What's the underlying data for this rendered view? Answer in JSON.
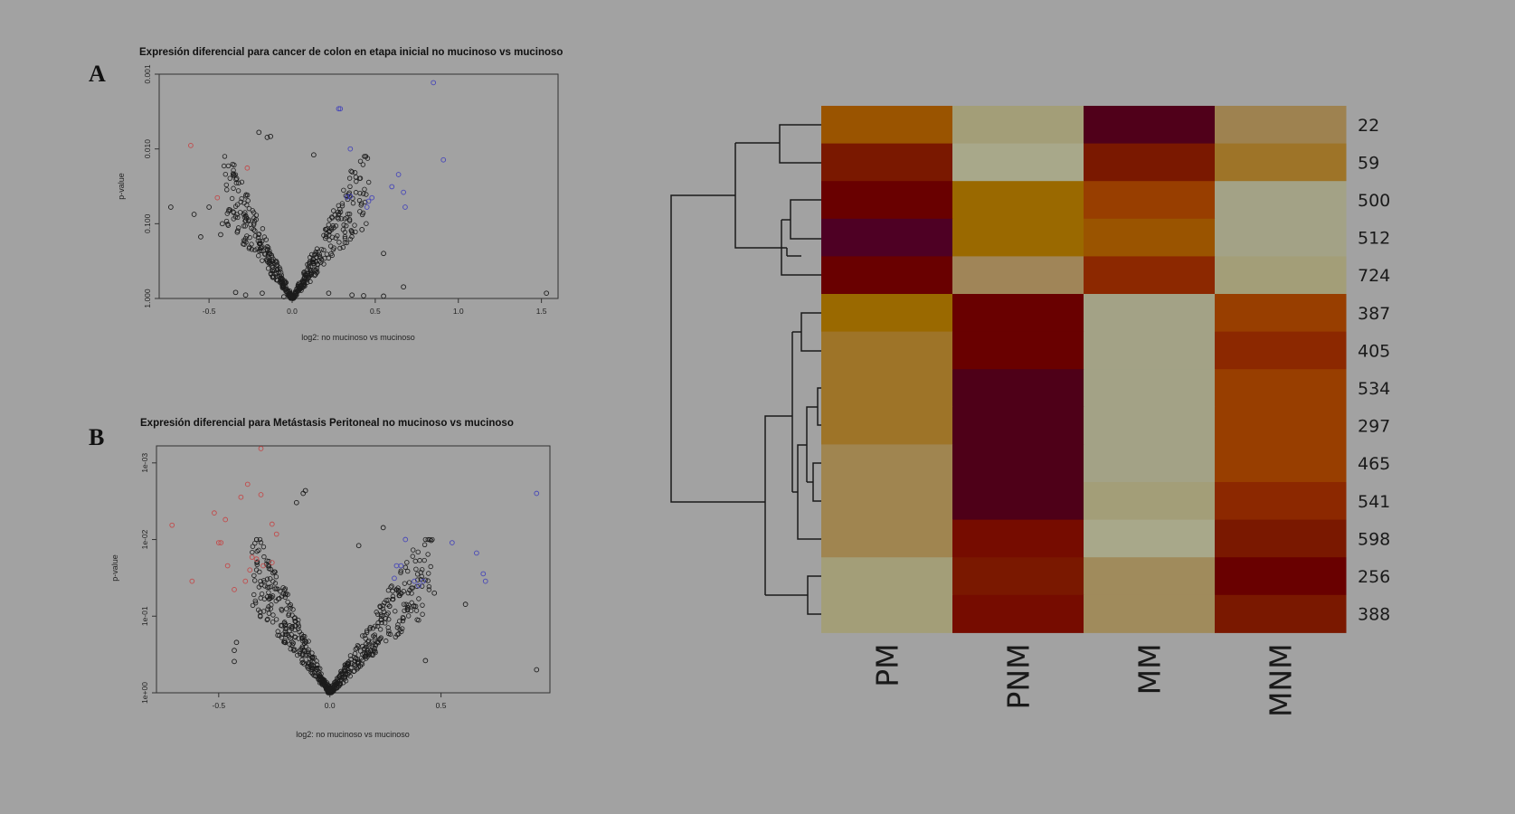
{
  "panels": [
    "A",
    "B"
  ],
  "chart_data": [
    {
      "type": "scatter",
      "panel": "A",
      "title": "Expresión diferencial para cancer de colon en etapa inicial no mucinoso vs mucinoso",
      "xlabel": "log2: no mucinoso vs mucinoso",
      "ylabel": "p-value",
      "xlim": [
        -0.8,
        1.6
      ],
      "ylim": [
        1.0,
        0.001
      ],
      "yscale": "log-reversed",
      "xticks": [
        "-0.5",
        "0.0",
        "0.5",
        "1.0",
        "1.5"
      ],
      "yticks": [
        "0.001",
        "0.010",
        "0.100",
        "1.000"
      ],
      "series": [
        {
          "color": "#c24a4a",
          "points": [
            [
              -0.61,
              0.009
            ],
            [
              -0.27,
              0.018
            ],
            [
              -0.45,
              0.045
            ]
          ]
        },
        {
          "color": "#4646b8",
          "points": [
            [
              0.28,
              0.0029
            ],
            [
              0.29,
              0.0029
            ],
            [
              0.35,
              0.01
            ],
            [
              0.85,
              0.0013
            ],
            [
              0.91,
              0.014
            ],
            [
              0.64,
              0.022
            ],
            [
              0.6,
              0.032
            ],
            [
              0.67,
              0.038
            ],
            [
              0.48,
              0.045
            ],
            [
              0.33,
              0.044
            ],
            [
              0.35,
              0.043
            ],
            [
              0.46,
              0.05
            ],
            [
              0.68,
              0.06
            ],
            [
              0.45,
              0.06
            ]
          ]
        },
        {
          "color": "#1c1c1c",
          "points": [
            [
              -0.73,
              0.06
            ],
            [
              -0.59,
              0.075
            ],
            [
              -0.55,
              0.15
            ],
            [
              -0.5,
              0.06
            ],
            [
              -0.42,
              0.1
            ],
            [
              -0.43,
              0.14
            ],
            [
              -0.33,
              0.13
            ],
            [
              -0.38,
              0.065
            ],
            [
              -0.34,
              0.83
            ],
            [
              -0.28,
              0.9
            ],
            [
              -0.18,
              0.85
            ],
            [
              -0.05,
              0.95
            ],
            [
              0.22,
              0.85
            ],
            [
              0.36,
              0.9
            ],
            [
              0.43,
              0.92
            ],
            [
              0.55,
              0.93
            ],
            [
              0.67,
              0.7
            ],
            [
              1.53,
              0.85
            ],
            [
              -0.2,
              0.006
            ],
            [
              -0.15,
              0.007
            ],
            [
              -0.13,
              0.0068
            ],
            [
              0.13,
              0.012
            ],
            [
              0.55,
              0.25
            ],
            [
              0.42,
              0.12
            ]
          ]
        }
      ]
    },
    {
      "type": "scatter",
      "panel": "B",
      "title": "Expresión diferencial para Metástasis Peritoneal no mucinoso vs mucinoso",
      "xlabel": "log2: no mucinoso vs mucinoso",
      "ylabel": "p-value",
      "xlim": [
        -0.78,
        0.99
      ],
      "ylim": [
        1.0,
        0.0006
      ],
      "yscale": "log-reversed",
      "xticks": [
        "-0.5",
        "0.0",
        "0.5"
      ],
      "yticks": [
        "1e-03",
        "1e-02",
        "1e-01",
        "1e+00"
      ],
      "series": [
        {
          "color": "#c24a4a",
          "points": [
            [
              -0.31,
              0.00065
            ],
            [
              -0.37,
              0.0019
            ],
            [
              -0.31,
              0.0026
            ],
            [
              -0.52,
              0.0045
            ],
            [
              -0.47,
              0.0055
            ],
            [
              -0.71,
              0.0065
            ],
            [
              -0.4,
              0.0028
            ],
            [
              -0.26,
              0.0063
            ],
            [
              -0.24,
              0.0085
            ],
            [
              -0.5,
              0.011
            ],
            [
              -0.49,
              0.011
            ],
            [
              -0.35,
              0.017
            ],
            [
              -0.33,
              0.018
            ],
            [
              -0.36,
              0.025
            ],
            [
              -0.3,
              0.022
            ],
            [
              -0.26,
              0.02
            ],
            [
              -0.46,
              0.022
            ],
            [
              -0.62,
              0.035
            ],
            [
              -0.38,
              0.035
            ],
            [
              -0.43,
              0.045
            ]
          ]
        },
        {
          "color": "#4646b8",
          "points": [
            [
              0.93,
              0.0025
            ],
            [
              0.34,
              0.01
            ],
            [
              0.55,
              0.011
            ],
            [
              0.66,
              0.015
            ],
            [
              0.69,
              0.028
            ],
            [
              0.7,
              0.035
            ],
            [
              0.32,
              0.022
            ],
            [
              0.3,
              0.022
            ],
            [
              0.38,
              0.035
            ],
            [
              0.42,
              0.035
            ],
            [
              0.4,
              0.04
            ],
            [
              0.29,
              0.032
            ]
          ]
        },
        {
          "color": "#1c1c1c",
          "points": [
            [
              -0.12,
              0.0025
            ],
            [
              -0.11,
              0.0023
            ],
            [
              -0.15,
              0.0033
            ],
            [
              0.24,
              0.007
            ],
            [
              0.13,
              0.012
            ],
            [
              0.61,
              0.07
            ],
            [
              0.47,
              0.05
            ],
            [
              0.93,
              0.5
            ],
            [
              0.43,
              0.38
            ],
            [
              -0.42,
              0.22
            ],
            [
              -0.43,
              0.28
            ],
            [
              -0.43,
              0.39
            ]
          ]
        }
      ]
    },
    {
      "type": "heatmap",
      "columns": [
        "PM",
        "PNM",
        "MM",
        "MNM"
      ],
      "rows": [
        "22",
        "59",
        "500",
        "512",
        "724",
        "387",
        "405",
        "534",
        "297",
        "465",
        "541",
        "598",
        "256",
        "388"
      ],
      "cells": [
        [
          "#9a5400",
          "#a39e78",
          "#50001a",
          "#9e8250"
        ],
        [
          "#7a1800",
          "#a8a88a",
          "#7a1800",
          "#9e7428"
        ],
        [
          "#690000",
          "#9a6900",
          "#983e00",
          "#a3a286"
        ],
        [
          "#4e0024",
          "#9a6900",
          "#9a5400",
          "#a3a286"
        ],
        [
          "#690000",
          "#a08558",
          "#8c2800",
          "#a39e78"
        ],
        [
          "#9a6900",
          "#690000",
          "#a3a286",
          "#983e00"
        ],
        [
          "#9e7428",
          "#690000",
          "#a3a286",
          "#8c2800"
        ],
        [
          "#9e7428",
          "#4e0018",
          "#a3a286",
          "#983e00"
        ],
        [
          "#9e7428",
          "#4e0018",
          "#a3a286",
          "#983e00"
        ],
        [
          "#a08550",
          "#4e0018",
          "#a3a286",
          "#983e00"
        ],
        [
          "#a08550",
          "#4e0018",
          "#a39e78",
          "#8c2800"
        ],
        [
          "#a08550",
          "#760c00",
          "#a8a88a",
          "#7a1800"
        ],
        [
          "#a39e78",
          "#7a1800",
          "#a08b5c",
          "#690000"
        ],
        [
          "#a39e78",
          "#760c00",
          "#a08b5c",
          "#7a1800"
        ]
      ]
    }
  ]
}
